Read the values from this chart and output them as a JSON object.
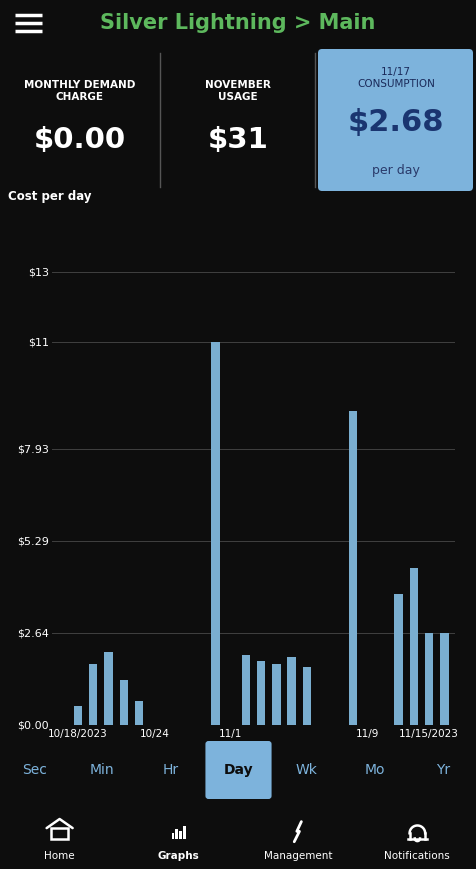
{
  "title": "Silver Lightning > Main",
  "title_color": "#5db85d",
  "bg_color": "#0d0d0d",
  "topbar_bg": "#181818",
  "panel_bg": "#2e2e2e",
  "blue_panel_bg": "#7db3dc",
  "header1_label": "MONTHLY DEMAND\nCHARGE",
  "header1_value": "$0.00",
  "header2_label": "NOVEMBER\nUSAGE",
  "header2_value": "$31",
  "header3_label": "11/17\nCONSUMPTION",
  "header3_value": "$2.68",
  "header3_sub": "per day",
  "chart_ylabel": "Cost per day",
  "yticks": [
    0.0,
    2.64,
    5.29,
    7.93,
    11.0,
    13.0
  ],
  "ytick_labels": [
    "$0.00",
    "$2.64",
    "$5.29",
    "$7.93",
    "$11",
    "$13"
  ],
  "xtick_labels": [
    "10/18/2023",
    "10/24",
    "11/1",
    "11/9",
    "11/15/2023"
  ],
  "xtick_pos": [
    1,
    6,
    11,
    20,
    24
  ],
  "bar_values": [
    0.0,
    0.55,
    1.75,
    2.1,
    1.3,
    0.7,
    0.0,
    0.0,
    0.0,
    0.0,
    11.0,
    0.0,
    2.0,
    1.85,
    1.75,
    1.95,
    1.65,
    0.0,
    0.0,
    9.0,
    0.0,
    0.0,
    3.75,
    4.5,
    2.64,
    2.64
  ],
  "bar_color": "#7aaed0",
  "nav_tabs": [
    "Sec",
    "Min",
    "Hr",
    "Day",
    "Wk",
    "Mo",
    "Yr"
  ],
  "nav_active": "Day",
  "nav_bg": "#252525",
  "nav_active_bg": "#7db3dc",
  "nav_text_color": "#7db3dc",
  "nav_active_text": "#0d0d0d",
  "bottom_bar_bg": "#4a7c35",
  "bottom_items": [
    "Home",
    "Graphs",
    "Management",
    "Notifications"
  ],
  "bottom_active": "Graphs",
  "white": "#ffffff",
  "grid_color": "#404040",
  "divider_color": "#555555"
}
